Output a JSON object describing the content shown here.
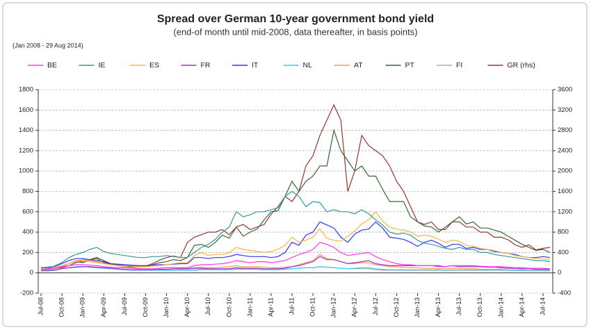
{
  "chart_data": {
    "type": "line",
    "title": "Spread over German 10-year government bond yield",
    "subtitle": "(end-of month until mid-2008, data thereafter, in basis points)",
    "note": "(Jan 2008 - 29 Aug 2014)",
    "x": [
      "Jul-08",
      null,
      null,
      "Oct-08",
      null,
      null,
      "Jan-09",
      null,
      null,
      "Apr-09",
      null,
      null,
      "Jul-09",
      null,
      null,
      "Oct-09",
      null,
      null,
      "Jan-10",
      null,
      null,
      "Apr-10",
      null,
      null,
      "Jul-10",
      null,
      null,
      "Oct-10",
      null,
      null,
      "Jan-11",
      null,
      null,
      "Apr-11",
      null,
      null,
      "Jul-11",
      null,
      null,
      "Oct-11",
      null,
      null,
      "Jan-12",
      null,
      null,
      "Apr-12",
      null,
      null,
      "Jul-12",
      null,
      null,
      "Oct-12",
      null,
      null,
      "Jan-13",
      null,
      null,
      "Apr-13",
      null,
      null,
      "Jul-13",
      null,
      null,
      "Oct-13",
      null,
      null,
      "Jan-14",
      null,
      null,
      "Apr-14",
      null,
      null,
      "Jul-14",
      null
    ],
    "ylim": [
      -200,
      1800
    ],
    "yticks": [
      -200,
      0,
      200,
      400,
      600,
      800,
      1000,
      1200,
      1400,
      1600,
      1800
    ],
    "y2lim": [
      -400,
      3600
    ],
    "y2ticks": [
      -400,
      0,
      400,
      800,
      1200,
      1600,
      2000,
      2400,
      2800,
      3200,
      3600
    ],
    "grid": true,
    "series": [
      {
        "name": "BE",
        "color": "#ff33ff",
        "values": [
          30,
          35,
          45,
          60,
          70,
          80,
          80,
          75,
          70,
          60,
          55,
          50,
          50,
          45,
          40,
          40,
          40,
          45,
          50,
          50,
          50,
          50,
          70,
          80,
          80,
          85,
          90,
          100,
          120,
          110,
          100,
          110,
          110,
          100,
          110,
          120,
          150,
          180,
          200,
          230,
          300,
          280,
          250,
          200,
          170,
          180,
          190,
          200,
          160,
          130,
          110,
          90,
          80,
          80,
          70,
          70,
          70,
          60,
          60,
          70,
          70,
          70,
          70,
          65,
          60,
          60,
          60,
          55,
          50,
          50,
          45,
          45,
          45,
          40
        ]
      },
      {
        "name": "IE",
        "color": "#339999",
        "values": [
          30,
          40,
          70,
          100,
          150,
          180,
          200,
          230,
          250,
          210,
          190,
          180,
          170,
          160,
          150,
          150,
          160,
          160,
          170,
          160,
          150,
          150,
          200,
          250,
          280,
          330,
          400,
          450,
          600,
          550,
          570,
          600,
          600,
          620,
          640,
          750,
          800,
          750,
          650,
          700,
          690,
          600,
          620,
          600,
          600,
          580,
          620,
          580,
          520,
          470,
          400,
          380,
          390,
          370,
          320,
          290,
          280,
          260,
          240,
          230,
          250,
          230,
          230,
          200,
          200,
          180,
          170,
          160,
          150,
          140,
          130,
          120,
          120,
          110
        ]
      },
      {
        "name": "ES",
        "color": "#ffb340",
        "values": [
          40,
          45,
          55,
          70,
          90,
          110,
          120,
          110,
          100,
          90,
          80,
          70,
          70,
          65,
          60,
          60,
          65,
          70,
          80,
          90,
          100,
          100,
          170,
          200,
          170,
          180,
          180,
          200,
          250,
          230,
          220,
          210,
          200,
          210,
          230,
          270,
          350,
          300,
          320,
          350,
          430,
          340,
          320,
          310,
          360,
          410,
          480,
          520,
          600,
          510,
          450,
          430,
          420,
          400,
          360,
          370,
          360,
          330,
          300,
          320,
          310,
          270,
          260,
          240,
          230,
          220,
          200,
          190,
          170,
          160,
          150,
          140,
          140,
          130
        ]
      },
      {
        "name": "FR",
        "color": "#9933cc",
        "values": [
          20,
          20,
          25,
          40,
          50,
          55,
          60,
          60,
          55,
          50,
          45,
          40,
          35,
          30,
          30,
          30,
          30,
          35,
          35,
          40,
          40,
          40,
          45,
          45,
          40,
          40,
          40,
          40,
          50,
          45,
          45,
          45,
          40,
          40,
          40,
          45,
          60,
          70,
          90,
          110,
          160,
          130,
          130,
          110,
          90,
          100,
          110,
          120,
          90,
          80,
          70,
          70,
          70,
          70,
          70,
          70,
          70,
          70,
          60,
          70,
          60,
          60,
          60,
          60,
          55,
          55,
          50,
          45,
          45,
          40,
          40,
          35,
          35,
          35
        ]
      },
      {
        "name": "IT",
        "color": "#3333ff",
        "values": [
          50,
          55,
          65,
          90,
          120,
          140,
          140,
          130,
          120,
          110,
          90,
          85,
          80,
          75,
          70,
          70,
          75,
          80,
          80,
          85,
          90,
          90,
          150,
          150,
          140,
          150,
          150,
          160,
          180,
          170,
          160,
          160,
          160,
          150,
          160,
          200,
          300,
          270,
          370,
          400,
          500,
          470,
          440,
          350,
          300,
          380,
          420,
          430,
          500,
          440,
          350,
          340,
          330,
          300,
          260,
          300,
          320,
          290,
          250,
          280,
          280,
          240,
          250,
          230,
          230,
          210,
          200,
          190,
          180,
          160,
          150,
          150,
          160,
          150
        ]
      },
      {
        "name": "NL",
        "color": "#33ccff",
        "values": [
          20,
          25,
          30,
          40,
          50,
          60,
          60,
          55,
          50,
          45,
          40,
          35,
          30,
          25,
          25,
          25,
          25,
          25,
          25,
          25,
          25,
          25,
          25,
          30,
          30,
          30,
          30,
          30,
          35,
          35,
          35,
          35,
          30,
          30,
          30,
          35,
          40,
          45,
          50,
          50,
          60,
          55,
          50,
          45,
          40,
          45,
          50,
          50,
          40,
          35,
          30,
          30,
          30,
          30,
          30,
          30,
          30,
          30,
          25,
          30,
          30,
          30,
          30,
          30,
          30,
          30,
          30,
          25,
          25,
          25,
          20,
          20,
          20,
          20
        ]
      },
      {
        "name": "AT",
        "color": "#ff9955",
        "values": [
          30,
          35,
          40,
          60,
          90,
          120,
          130,
          120,
          110,
          90,
          80,
          70,
          60,
          50,
          45,
          40,
          40,
          45,
          50,
          50,
          45,
          45,
          50,
          55,
          50,
          50,
          55,
          60,
          70,
          60,
          60,
          60,
          55,
          50,
          50,
          55,
          60,
          80,
          100,
          120,
          180,
          140,
          130,
          110,
          90,
          90,
          100,
          100,
          80,
          70,
          60,
          60,
          55,
          50,
          50,
          45,
          45,
          40,
          40,
          45,
          45,
          40,
          40,
          35,
          35,
          35,
          35,
          30,
          30,
          30,
          25,
          25,
          25,
          25
        ]
      },
      {
        "name": "PT",
        "color": "#336633",
        "values": [
          40,
          45,
          55,
          70,
          90,
          110,
          100,
          130,
          150,
          120,
          90,
          70,
          60,
          60,
          60,
          60,
          80,
          100,
          110,
          130,
          120,
          150,
          270,
          280,
          250,
          300,
          370,
          340,
          450,
          360,
          400,
          430,
          520,
          600,
          610,
          750,
          900,
          800,
          900,
          950,
          1050,
          1050,
          1400,
          1200,
          1100,
          1000,
          1050,
          950,
          950,
          820,
          700,
          700,
          700,
          550,
          500,
          460,
          450,
          400,
          450,
          500,
          550,
          480,
          500,
          440,
          440,
          420,
          400,
          360,
          320,
          280,
          250,
          220,
          230,
          200
        ]
      },
      {
        "name": "FI",
        "color": "#aaaaaa",
        "values": [
          20,
          25,
          30,
          40,
          50,
          60,
          60,
          55,
          50,
          45,
          40,
          35,
          30,
          30,
          30,
          30,
          30,
          30,
          30,
          30,
          30,
          30,
          30,
          35,
          35,
          35,
          35,
          35,
          40,
          40,
          40,
          40,
          35,
          35,
          35,
          35,
          40,
          45,
          50,
          50,
          60,
          55,
          50,
          45,
          40,
          40,
          40,
          40,
          30,
          25,
          25,
          25,
          25,
          25,
          25,
          25,
          25,
          25,
          25,
          25,
          25,
          25,
          25,
          25,
          25,
          25,
          25,
          25,
          25,
          20,
          20,
          20,
          20,
          20
        ]
      },
      {
        "name": "GR (rhs)",
        "color": "#993333",
        "axis": "y2",
        "values": [
          60,
          70,
          90,
          100,
          140,
          200,
          230,
          260,
          280,
          200,
          170,
          160,
          150,
          140,
          130,
          130,
          180,
          250,
          300,
          330,
          300,
          600,
          700,
          750,
          800,
          800,
          850,
          750,
          900,
          950,
          850,
          900,
          950,
          1150,
          1300,
          1500,
          1400,
          1600,
          2100,
          2300,
          2700,
          3000,
          3300,
          3000,
          1600,
          2000,
          2700,
          2500,
          2400,
          2300,
          2100,
          1800,
          1600,
          1300,
          1000,
          950,
          1000,
          850,
          850,
          1000,
          1000,
          900,
          900,
          800,
          800,
          700,
          700,
          650,
          550,
          500,
          550,
          450,
          480,
          500
        ]
      }
    ]
  }
}
